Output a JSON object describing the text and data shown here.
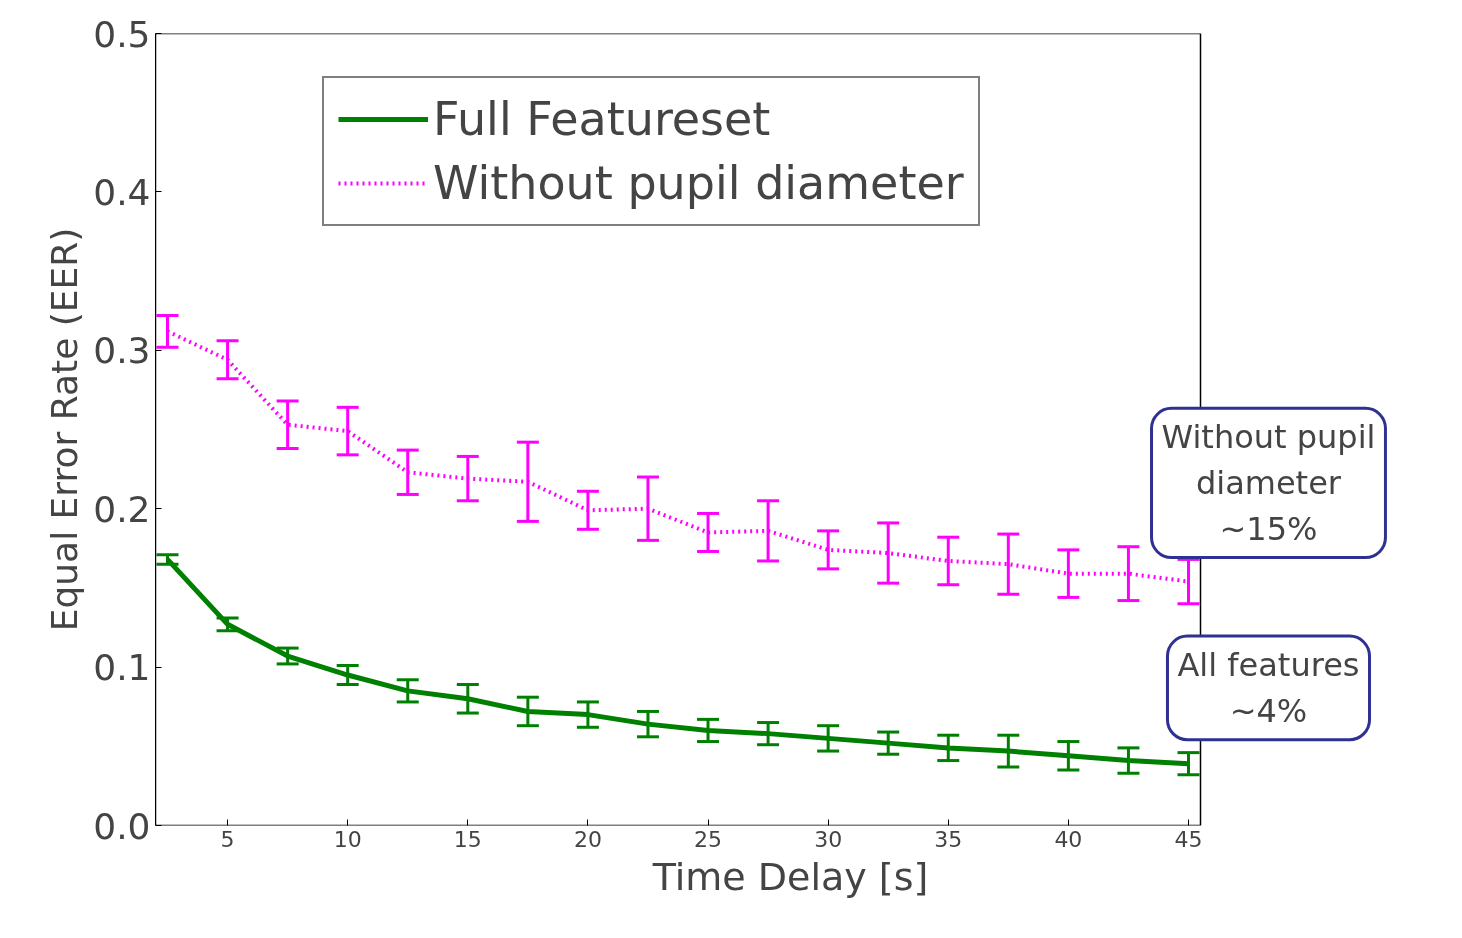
{
  "chart_data": {
    "type": "line",
    "xlabel": "Time Delay [s]",
    "ylabel": "Equal Error Rate (EER)",
    "x": [
      2.5,
      5,
      7.5,
      10,
      12.5,
      15,
      17.5,
      20,
      22.5,
      25,
      27.5,
      30,
      32.5,
      35,
      37.5,
      40,
      42.5,
      45
    ],
    "series": [
      {
        "name": "Full Featureset",
        "color": "#008000",
        "line_style": "solid",
        "values": [
          0.168,
          0.127,
          0.107,
          0.095,
          0.085,
          0.08,
          0.072,
          0.07,
          0.064,
          0.06,
          0.058,
          0.055,
          0.052,
          0.049,
          0.047,
          0.044,
          0.041,
          0.039
        ],
        "errors": [
          0.003,
          0.004,
          0.005,
          0.006,
          0.007,
          0.009,
          0.009,
          0.008,
          0.008,
          0.007,
          0.007,
          0.008,
          0.007,
          0.008,
          0.01,
          0.009,
          0.008,
          0.007
        ]
      },
      {
        "name": "Without pupil diameter",
        "color": "#ff00ff",
        "line_style": "dotted",
        "values": [
          0.312,
          0.294,
          0.253,
          0.249,
          0.223,
          0.219,
          0.217,
          0.199,
          0.2,
          0.185,
          0.186,
          0.174,
          0.172,
          0.167,
          0.165,
          0.159,
          0.159,
          0.154
        ],
        "errors": [
          0.01,
          0.012,
          0.015,
          0.015,
          0.014,
          0.014,
          0.025,
          0.012,
          0.02,
          0.012,
          0.019,
          0.012,
          0.019,
          0.015,
          0.019,
          0.015,
          0.017,
          0.014
        ]
      }
    ],
    "xlim": [
      2,
      45.5
    ],
    "ylim": [
      0,
      0.5
    ],
    "xticks": [
      5,
      10,
      15,
      20,
      25,
      30,
      35,
      40,
      45
    ],
    "yticks": [
      {
        "value": 0,
        "label": "0.0"
      },
      {
        "value": 0.1,
        "label": "0.1"
      },
      {
        "value": 0.2,
        "label": "0.2"
      },
      {
        "value": 0.3,
        "label": "0.3"
      },
      {
        "value": 0.4,
        "label": "0.4"
      },
      {
        "value": 0.5,
        "label": "0.5"
      }
    ],
    "grid": false,
    "legend": "top right",
    "marker": "none",
    "annotations": [
      {
        "text": "Without pupil\ndiameter\n~15%",
        "x": 45,
        "y": 0.154
      },
      {
        "text": "All features\n~4%",
        "x": 45,
        "y": 0.039
      }
    ]
  }
}
